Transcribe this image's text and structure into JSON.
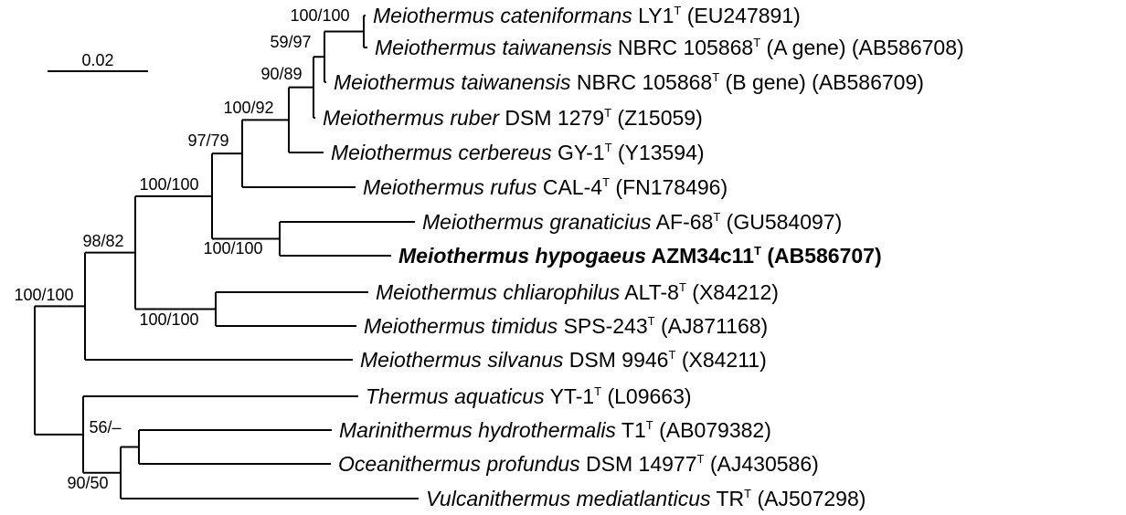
{
  "scale_bar": {
    "label": "0.02"
  },
  "taxa": [
    {
      "genus": "Meiothermus",
      "species": "cateniformans",
      "strain": "LY1",
      "type_mark": "T",
      "accession": "(EU247891)",
      "highlight": false
    },
    {
      "genus": "Meiothermus",
      "species": "taiwanensis",
      "strain": "NBRC 105868",
      "type_mark": "T",
      "accession": "(A gene) (AB586708)",
      "highlight": false
    },
    {
      "genus": "Meiothermus",
      "species": "taiwanensis",
      "strain": "NBRC 105868",
      "type_mark": "T",
      "accession": "(B gene) (AB586709)",
      "highlight": false
    },
    {
      "genus": "Meiothermus",
      "species": "ruber",
      "strain": "DSM 1279",
      "type_mark": "T",
      "accession": "(Z15059)",
      "highlight": false
    },
    {
      "genus": "Meiothermus",
      "species": "cerbereus",
      "strain": "GY-1",
      "type_mark": "T",
      "accession": "(Y13594)",
      "highlight": false
    },
    {
      "genus": "Meiothermus",
      "species": "rufus",
      "strain": "CAL-4",
      "type_mark": "T",
      "accession": "(FN178496)",
      "highlight": false
    },
    {
      "genus": "Meiothermus",
      "species": "granaticius",
      "strain": "AF-68",
      "type_mark": "T",
      "accession": "(GU584097)",
      "highlight": false
    },
    {
      "genus": "Meiothermus",
      "species": "hypogaeus",
      "strain": "AZM34c11",
      "type_mark": "T",
      "accession": "(AB586707)",
      "highlight": true
    },
    {
      "genus": "Meiothermus",
      "species": "chliarophilus",
      "strain": "ALT-8",
      "type_mark": "T",
      "accession": "(X84212)",
      "highlight": false
    },
    {
      "genus": "Meiothermus",
      "species": "timidus",
      "strain": "SPS-243",
      "type_mark": "T",
      "accession": "(AJ871168)",
      "highlight": false
    },
    {
      "genus": "Meiothermus",
      "species": "silvanus",
      "strain": "DSM 9946",
      "type_mark": "T",
      "accession": "(X84211)",
      "highlight": false
    },
    {
      "genus": "Thermus",
      "species": "aquaticus",
      "strain": "YT-1",
      "type_mark": "T",
      "accession": "(L09663)",
      "highlight": false
    },
    {
      "genus": "Marinithermus",
      "species": "hydrothermalis",
      "strain": "T1",
      "type_mark": "T",
      "accession": "(AB079382)",
      "highlight": false
    },
    {
      "genus": "Oceanithermus",
      "species": "profundus",
      "strain": "DSM 14977",
      "type_mark": "T",
      "accession": "(AJ430586)",
      "highlight": false
    },
    {
      "genus": "Vulcanithermus",
      "species": "mediatlanticus",
      "strain": "TR",
      "type_mark": "T",
      "accession": "(AJ507298)",
      "highlight": false
    }
  ],
  "bootstrap": [
    {
      "node": "root",
      "value": "100/100"
    },
    {
      "node": "meiothermus",
      "value": "98/82"
    },
    {
      "node": "core",
      "value": "100/100"
    },
    {
      "node": "rufus-group",
      "value": "97/79"
    },
    {
      "node": "cerbereus-group",
      "value": "100/92"
    },
    {
      "node": "ruber-group",
      "value": "90/89"
    },
    {
      "node": "taiwanensis-group",
      "value": "59/97"
    },
    {
      "node": "cateniformans-pair",
      "value": "100/100"
    },
    {
      "node": "granaticius-pair",
      "value": "100/100"
    },
    {
      "node": "chliarophilus-pair",
      "value": "100/100"
    },
    {
      "node": "thermus-group",
      "value": "90/50"
    },
    {
      "node": "marinithermus-group",
      "value": "56/–"
    }
  ]
}
